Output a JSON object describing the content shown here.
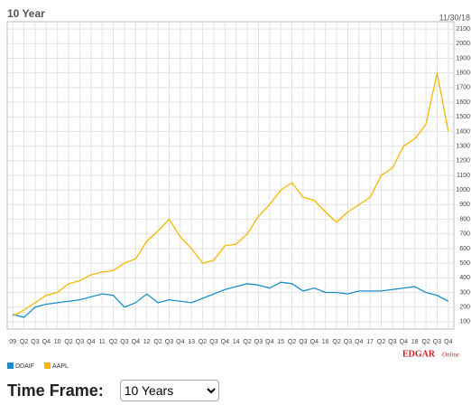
{
  "chart_data": {
    "type": "line",
    "title": "10 Year",
    "date": "11/30/18",
    "categories": [
      "09",
      "Q2",
      "Q3",
      "Q4",
      "10",
      "Q2",
      "Q3",
      "Q4",
      "11",
      "Q2",
      "Q3",
      "Q4",
      "12",
      "Q2",
      "Q3",
      "Q4",
      "13",
      "Q2",
      "Q3",
      "Q4",
      "14",
      "Q2",
      "Q3",
      "Q4",
      "15",
      "Q2",
      "Q3",
      "Q4",
      "16",
      "Q2",
      "Q3",
      "Q4",
      "17",
      "Q2",
      "Q3",
      "Q4",
      "18",
      "Q2",
      "Q3",
      "Q4"
    ],
    "series": [
      {
        "name": "DDAIF",
        "color": "#1a8fc9",
        "values": [
          150,
          130,
          200,
          220,
          230,
          240,
          250,
          270,
          290,
          280,
          200,
          230,
          290,
          230,
          250,
          240,
          230,
          260,
          290,
          320,
          340,
          360,
          350,
          330,
          370,
          360,
          310,
          330,
          300,
          300,
          290,
          310,
          310,
          310,
          320,
          330,
          340,
          300,
          280,
          240
        ]
      },
      {
        "name": "AAPL",
        "color": "#f5b800",
        "values": [
          140,
          180,
          230,
          280,
          300,
          360,
          380,
          420,
          440,
          450,
          500,
          530,
          650,
          720,
          800,
          680,
          600,
          500,
          520,
          620,
          630,
          700,
          820,
          900,
          1000,
          1050,
          950,
          930,
          850,
          780,
          850,
          900,
          950,
          1100,
          1150,
          1300,
          1350,
          1450,
          1800,
          1400
        ]
      }
    ],
    "ylim": [
      50,
      2150
    ],
    "yticks": [
      100,
      200,
      300,
      400,
      500,
      600,
      700,
      800,
      900,
      1000,
      1100,
      1200,
      1300,
      1400,
      1500,
      1600,
      1700,
      1800,
      1900,
      2000,
      2100
    ],
    "grid": true
  },
  "branding": {
    "logo": "EDGAR",
    "suffix": "Online"
  },
  "controls": {
    "label": "Time Frame:",
    "selected": "10 Years"
  }
}
